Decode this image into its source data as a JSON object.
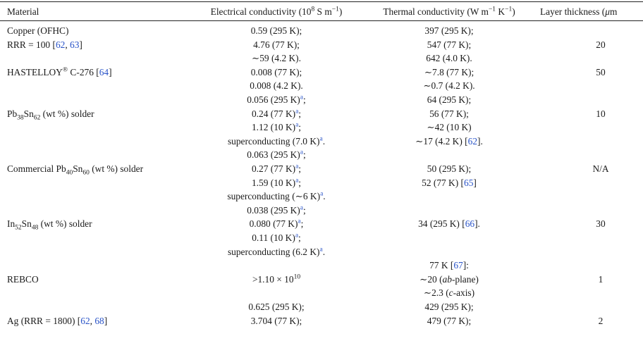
{
  "table": {
    "headers": [
      "Material",
      "Electrical conductivity (10<sup>8</sup> S m<sup>−1</sup>)",
      "Thermal conductivity (W m<sup>−1</sup> K<sup>−1</sup>)",
      "Layer thickness (<em>μ</em>m"
    ],
    "cells": [
      {
        "c": 1,
        "r": 0,
        "h": "Copper (OFHC)"
      },
      {
        "c": 1,
        "r": 1,
        "h": "RRR = 100 [<span class=\"ref\">62</span>, <span class=\"ref\">63</span>]"
      },
      {
        "c": 2,
        "r": 0,
        "h": "0.59 (295 K);"
      },
      {
        "c": 2,
        "r": 1,
        "h": "4.76 (77 K);"
      },
      {
        "c": 2,
        "r": 2,
        "h": "∼59 (4.2 K)."
      },
      {
        "c": 3,
        "r": 0,
        "h": "397 (295 K);"
      },
      {
        "c": 3,
        "r": 1,
        "h": "547 (77 K);"
      },
      {
        "c": 3,
        "r": 2,
        "h": "642 (4.0 K)."
      },
      {
        "c": 4,
        "r": 1,
        "h": "20"
      },
      {
        "c": 1,
        "r": 3,
        "h": "HASTELLOY<sup>®</sup> C-276 [<span class=\"ref\">64</span>]"
      },
      {
        "c": 2,
        "r": 3,
        "h": "0.008 (77 K);"
      },
      {
        "c": 2,
        "r": 4,
        "h": "0.008 (4.2 K)."
      },
      {
        "c": 3,
        "r": 3,
        "h": "∼7.8 (77 K);"
      },
      {
        "c": 3,
        "r": 4,
        "h": "∼0.7 (4.2 K)."
      },
      {
        "c": 4,
        "r": 3,
        "h": "50"
      },
      {
        "c": 2,
        "r": 5,
        "h": "0.056 (295 K)<sup class=\"a\">a</sup>;"
      },
      {
        "c": 3,
        "r": 5,
        "h": "64 (295 K);"
      },
      {
        "c": 1,
        "r": 6,
        "h": "Pb<sub>38</sub>Sn<sub>62</sub> (wt %) solder"
      },
      {
        "c": 2,
        "r": 6,
        "h": "0.24 (77 K)<sup class=\"a\">a</sup>;"
      },
      {
        "c": 3,
        "r": 6,
        "h": "56 (77 K);"
      },
      {
        "c": 4,
        "r": 6,
        "h": "10"
      },
      {
        "c": 2,
        "r": 7,
        "h": "1.12 (10 K)<sup class=\"a\">a</sup>;"
      },
      {
        "c": 3,
        "r": 7,
        "h": "∼42 (10 K)"
      },
      {
        "c": 2,
        "r": 8,
        "h": "superconducting (7.0 K)<sup class=\"a\">a</sup>."
      },
      {
        "c": 3,
        "r": 8,
        "h": "∼17 (4.2 K) [<span class=\"ref\">62</span>]."
      },
      {
        "c": 2,
        "r": 9,
        "h": "0.063 (295 K)<sup class=\"a\">a</sup>;"
      },
      {
        "c": 1,
        "r": 10,
        "h": "Commercial Pb<sub>40</sub>Sn<sub>60</sub> (wt %) solder"
      },
      {
        "c": 2,
        "r": 10,
        "h": "0.27 (77 K)<sup class=\"a\">a</sup>;"
      },
      {
        "c": 3,
        "r": 10,
        "h": "50 (295 K);"
      },
      {
        "c": 4,
        "r": 10,
        "h": "N/A"
      },
      {
        "c": 2,
        "r": 11,
        "h": "1.59 (10 K)<sup class=\"a\">a</sup>;"
      },
      {
        "c": 3,
        "r": 11,
        "h": "52 (77 K) [<span class=\"ref\">65</span>]"
      },
      {
        "c": 2,
        "r": 12,
        "h": "superconducting (∼6 K)<sup class=\"a\">a</sup>."
      },
      {
        "c": 2,
        "r": 13,
        "h": "0.038 (295 K)<sup class=\"a\">a</sup>;"
      },
      {
        "c": 1,
        "r": 14,
        "h": "In<sub>52</sub>Sn<sub>48</sub> (wt %) solder"
      },
      {
        "c": 2,
        "r": 14,
        "h": "0.080 (77 K)<sup class=\"a\">a</sup>;"
      },
      {
        "c": 3,
        "r": 14,
        "h": "34 (295 K) [<span class=\"ref\">66</span>]."
      },
      {
        "c": 4,
        "r": 14,
        "h": "30"
      },
      {
        "c": 2,
        "r": 15,
        "h": "0.11 (10 K)<sup class=\"a\">a</sup>;"
      },
      {
        "c": 2,
        "r": 16,
        "h": "superconducting (6.2 K)<sup class=\"a\">a</sup>."
      },
      {
        "c": 3,
        "r": 17,
        "h": "77 K [<span class=\"ref\">67</span>]:"
      },
      {
        "c": 1,
        "r": 18,
        "h": "REBCO"
      },
      {
        "c": 2,
        "r": 18,
        "h": ">1.10 × 10<sup>10</sup>"
      },
      {
        "c": 3,
        "r": 18,
        "h": "∼20 (<em>ab</em>-plane)"
      },
      {
        "c": 4,
        "r": 18,
        "h": "1"
      },
      {
        "c": 3,
        "r": 19,
        "h": "∼2.3 (<em>c</em>-axis)"
      },
      {
        "c": 2,
        "r": 20,
        "h": "0.625 (295 K);"
      },
      {
        "c": 3,
        "r": 20,
        "h": "429 (295 K);"
      },
      {
        "c": 1,
        "r": 21,
        "h": "Ag (RRR = 1800) [<span class=\"ref\">62</span>, <span class=\"ref\">68</span>]"
      },
      {
        "c": 2,
        "r": 21,
        "h": "3.704 (77 K);"
      },
      {
        "c": 3,
        "r": 21,
        "h": "479 (77 K);"
      },
      {
        "c": 4,
        "r": 21,
        "h": "2"
      }
    ]
  }
}
